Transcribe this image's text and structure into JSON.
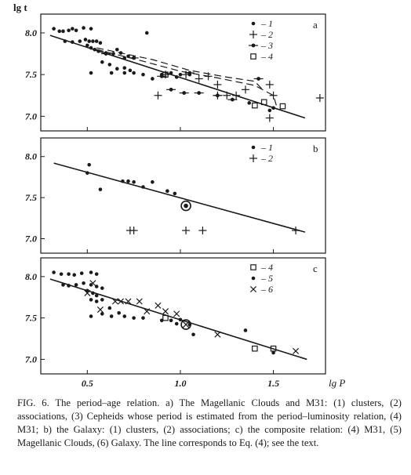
{
  "chart_data": {
    "type": "scatter",
    "y_axis_label": "lg t",
    "x_axis_label": "lg P",
    "xlim": [
      0.25,
      1.78
    ],
    "x_ticks": [
      0.5,
      1.0,
      1.5
    ],
    "x_tick_labels": [
      "0.5",
      "1.0",
      "1.5"
    ],
    "grid": false,
    "panels": [
      {
        "panel_label": "a",
        "ylim": [
          6.9,
          8.15
        ],
        "y_ticks": [
          7.0,
          7.5,
          8.0
        ],
        "y_tick_labels": [
          "7.0",
          "7.5",
          "8.0"
        ],
        "legend_position": "top-right",
        "legend": [
          {
            "marker": "dot",
            "label": "1"
          },
          {
            "marker": "plus",
            "label": "2"
          },
          {
            "marker": "dot-dash",
            "label": "3"
          },
          {
            "marker": "square",
            "label": "4"
          }
        ],
        "series": [
          {
            "marker": "dot",
            "points": [
              [
                0.32,
                8.05
              ],
              [
                0.35,
                8.02
              ],
              [
                0.37,
                8.02
              ],
              [
                0.4,
                8.03
              ],
              [
                0.42,
                8.05
              ],
              [
                0.44,
                8.03
              ],
              [
                0.48,
                8.06
              ],
              [
                0.52,
                8.05
              ],
              [
                0.38,
                7.9
              ],
              [
                0.42,
                7.89
              ],
              [
                0.46,
                7.9
              ],
              [
                0.49,
                7.92
              ],
              [
                0.51,
                7.9
              ],
              [
                0.53,
                7.9
              ],
              [
                0.55,
                7.9
              ],
              [
                0.57,
                7.88
              ],
              [
                0.5,
                7.85
              ],
              [
                0.52,
                7.82
              ],
              [
                0.54,
                7.8
              ],
              [
                0.56,
                7.78
              ],
              [
                0.6,
                7.76
              ],
              [
                0.64,
                7.75
              ],
              [
                0.66,
                7.8
              ],
              [
                0.68,
                7.76
              ],
              [
                0.72,
                7.72
              ],
              [
                0.75,
                7.7
              ],
              [
                0.58,
                7.65
              ],
              [
                0.62,
                7.62
              ],
              [
                0.66,
                7.57
              ],
              [
                0.7,
                7.58
              ],
              [
                0.73,
                7.55
              ],
              [
                0.52,
                7.52
              ],
              [
                0.63,
                7.52
              ],
              [
                0.7,
                7.52
              ],
              [
                0.75,
                7.52
              ],
              [
                0.8,
                7.5
              ],
              [
                0.85,
                7.45
              ],
              [
                0.9,
                7.5
              ],
              [
                0.95,
                7.52
              ],
              [
                0.98,
                7.47
              ],
              [
                1.0,
                7.5
              ],
              [
                1.05,
                7.5
              ],
              [
                0.82,
                8.0
              ],
              [
                0.7,
                7.7
              ],
              [
                1.37,
                7.16
              ],
              [
                1.48,
                7.07
              ],
              [
                1.5,
                7.1
              ]
            ]
          },
          {
            "marker": "plus",
            "points": [
              [
                0.88,
                7.25
              ],
              [
                0.92,
                7.5
              ],
              [
                1.03,
                7.5
              ],
              [
                1.1,
                7.45
              ],
              [
                1.15,
                7.48
              ],
              [
                1.2,
                7.38
              ],
              [
                1.2,
                7.25
              ],
              [
                1.25,
                7.25
              ],
              [
                1.3,
                7.25
              ],
              [
                1.35,
                7.32
              ],
              [
                1.48,
                7.38
              ],
              [
                1.5,
                7.25
              ],
              [
                1.48,
                6.98
              ],
              [
                1.75,
                7.22
              ]
            ]
          },
          {
            "marker": "dot-dash",
            "points": [
              [
                0.6,
                7.75
              ],
              [
                0.75,
                7.7
              ],
              [
                0.9,
                7.48
              ],
              [
                0.95,
                7.32
              ],
              [
                1.02,
                7.28
              ],
              [
                1.05,
                7.52
              ],
              [
                1.1,
                7.28
              ],
              [
                1.2,
                7.25
              ],
              [
                1.28,
                7.2
              ],
              [
                1.42,
                7.45
              ]
            ]
          },
          {
            "marker": "square",
            "points": [
              [
                0.92,
                7.5
              ],
              [
                1.4,
                7.13
              ],
              [
                1.45,
                7.17
              ],
              [
                1.55,
                7.12
              ]
            ]
          }
        ],
        "fit_line": [
          [
            0.3,
            7.97
          ],
          [
            1.67,
            6.98
          ]
        ],
        "dashed_curves": [
          [
            [
              0.55,
              7.8
            ],
            [
              0.8,
              7.66
            ],
            [
              1.0,
              7.54
            ],
            [
              1.2,
              7.46
            ],
            [
              1.4,
              7.37
            ],
            [
              1.5,
              7.25
            ],
            [
              1.52,
              7.1
            ]
          ],
          [
            [
              0.55,
              7.82
            ],
            [
              0.85,
              7.68
            ],
            [
              1.05,
              7.55
            ],
            [
              1.25,
              7.47
            ],
            [
              1.4,
              7.42
            ],
            [
              1.45,
              7.3
            ]
          ]
        ]
      },
      {
        "panel_label": "b",
        "ylim": [
          6.9,
          8.15
        ],
        "y_ticks": [
          7.0,
          7.5,
          8.0
        ],
        "y_tick_labels": [
          "7.0",
          "7.5",
          "8.0"
        ],
        "legend_position": "top-right",
        "legend": [
          {
            "marker": "dot",
            "label": "1"
          },
          {
            "marker": "plus",
            "label": "2"
          }
        ],
        "series": [
          {
            "marker": "dot",
            "points": [
              [
                0.51,
                7.9
              ],
              [
                0.5,
                7.8
              ],
              [
                0.57,
                7.6
              ],
              [
                0.69,
                7.7
              ],
              [
                0.72,
                7.7
              ],
              [
                0.75,
                7.69
              ],
              [
                0.8,
                7.63
              ],
              [
                0.85,
                7.69
              ],
              [
                0.93,
                7.58
              ],
              [
                0.97,
                7.55
              ]
            ]
          },
          {
            "marker": "plus",
            "points": [
              [
                0.73,
                7.1
              ],
              [
                0.75,
                7.1
              ],
              [
                1.03,
                7.1
              ],
              [
                1.12,
                7.1
              ],
              [
                1.62,
                7.1
              ]
            ]
          },
          {
            "marker": "circled-dot",
            "points": [
              [
                1.03,
                7.4
              ]
            ]
          }
        ],
        "fit_line": [
          [
            0.32,
            7.92
          ],
          [
            1.67,
            7.08
          ]
        ]
      },
      {
        "panel_label": "c",
        "ylim": [
          6.9,
          8.15
        ],
        "y_ticks": [
          7.0,
          7.5,
          8.0
        ],
        "y_tick_labels": [
          "7.0",
          "7.5",
          "8.0"
        ],
        "legend_position": "top-right",
        "legend": [
          {
            "marker": "square",
            "label": "4"
          },
          {
            "marker": "dot",
            "label": "5"
          },
          {
            "marker": "cross",
            "label": "6"
          }
        ],
        "series": [
          {
            "marker": "square",
            "points": [
              [
                0.92,
                7.5
              ],
              [
                1.4,
                7.13
              ],
              [
                1.5,
                7.13
              ]
            ]
          },
          {
            "marker": "dot",
            "points": [
              [
                0.32,
                8.05
              ],
              [
                0.36,
                8.03
              ],
              [
                0.4,
                8.03
              ],
              [
                0.43,
                8.02
              ],
              [
                0.47,
                8.04
              ],
              [
                0.52,
                8.05
              ],
              [
                0.55,
                8.03
              ],
              [
                0.37,
                7.9
              ],
              [
                0.4,
                7.89
              ],
              [
                0.44,
                7.9
              ],
              [
                0.48,
                7.92
              ],
              [
                0.52,
                7.9
              ],
              [
                0.55,
                7.88
              ],
              [
                0.58,
                7.86
              ],
              [
                0.5,
                7.83
              ],
              [
                0.53,
                7.8
              ],
              [
                0.55,
                7.77
              ],
              [
                0.52,
                7.72
              ],
              [
                0.55,
                7.7
              ],
              [
                0.58,
                7.72
              ],
              [
                0.52,
                7.52
              ],
              [
                0.58,
                7.55
              ],
              [
                0.63,
                7.52
              ],
              [
                0.67,
                7.56
              ],
              [
                0.7,
                7.52
              ],
              [
                0.75,
                7.5
              ],
              [
                0.62,
                7.62
              ],
              [
                0.8,
                7.5
              ],
              [
                0.9,
                7.47
              ],
              [
                0.95,
                7.47
              ],
              [
                0.98,
                7.43
              ],
              [
                1.0,
                7.48
              ],
              [
                1.05,
                7.42
              ],
              [
                1.07,
                7.3
              ],
              [
                1.35,
                7.35
              ],
              [
                1.5,
                7.08
              ]
            ]
          },
          {
            "marker": "cross",
            "points": [
              [
                0.5,
                7.8
              ],
              [
                0.53,
                7.92
              ],
              [
                0.57,
                7.6
              ],
              [
                0.65,
                7.7
              ],
              [
                0.68,
                7.7
              ],
              [
                0.72,
                7.7
              ],
              [
                0.78,
                7.7
              ],
              [
                0.82,
                7.58
              ],
              [
                0.88,
                7.65
              ],
              [
                0.92,
                7.58
              ],
              [
                0.98,
                7.55
              ],
              [
                1.2,
                7.3
              ],
              [
                1.62,
                7.1
              ]
            ]
          },
          {
            "marker": "circled-cross",
            "points": [
              [
                1.03,
                7.42
              ]
            ]
          }
        ],
        "fit_line": [
          [
            0.3,
            7.97
          ],
          [
            1.68,
            7.0
          ]
        ]
      }
    ]
  },
  "caption": {
    "text": "FIG. 6. The period–age relation. a) The Magellanic Clouds and M31: (1) clusters, (2) associations, (3) Cepheids whose period is estimated from the period–luminosity relation, (4) M31; b) the Galaxy: (1) clusters, (2) associations; c) the composite relation: (4) M31, (5) Magellanic Clouds, (6) Galaxy. The line corresponds to Eq. (4); see the text."
  }
}
